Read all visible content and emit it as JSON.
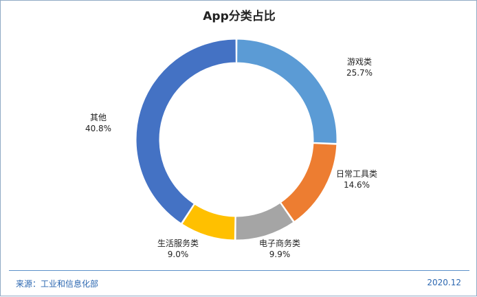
{
  "chart_data": {
    "type": "pie",
    "title": "App分类占比",
    "categories": [
      "游戏类",
      "日常工具类",
      "电子商务类",
      "生活服务类",
      "其他"
    ],
    "values": [
      25.7,
      14.6,
      9.9,
      9.0,
      40.8
    ],
    "value_labels": [
      "25.7%",
      "14.6%",
      "9.9%",
      "9.0%",
      "40.8%"
    ],
    "colors": [
      "#5b9bd5",
      "#ed7d31",
      "#a5a5a5",
      "#ffc000",
      "#4472c4"
    ],
    "donut": true,
    "start": "12 o'clock",
    "direction": "clockwise"
  },
  "footer": {
    "source": "来源：工业和信息化部",
    "date": "2020.12"
  }
}
